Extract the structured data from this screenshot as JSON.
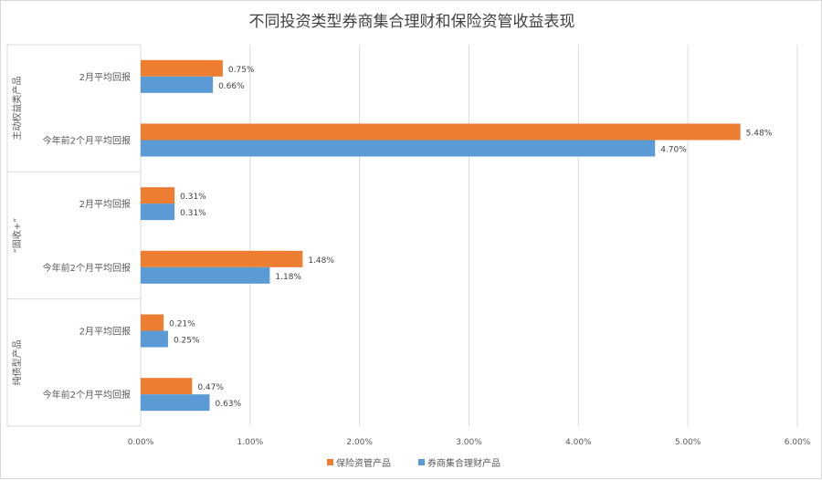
{
  "chart_data": {
    "type": "bar",
    "orientation": "horizontal",
    "title": "不同投资类型券商集合理财和保险资管收益表现",
    "groups": [
      {
        "name": "主动权益类产品",
        "categories": [
          "2月平均回报",
          "今年前2个月平均回报"
        ]
      },
      {
        "name": "“固收+”",
        "categories": [
          "2月平均回报",
          "今年前2个月平均回报"
        ]
      },
      {
        "name": "纯债型产品",
        "categories": [
          "2月平均回报",
          "今年前2个月平均回报"
        ]
      }
    ],
    "series": [
      {
        "name": "保险资管产品",
        "color": "#ed7d31",
        "values": [
          0.75,
          5.48,
          0.31,
          1.48,
          0.21,
          0.47
        ],
        "labels": [
          "0.75%",
          "5.48%",
          "0.31%",
          "1.48%",
          "0.21%",
          "0.47%"
        ]
      },
      {
        "name": "券商集合理财产品",
        "color": "#5b9bd5",
        "values": [
          0.66,
          4.7,
          0.31,
          1.18,
          0.25,
          0.63
        ],
        "labels": [
          "0.66%",
          "4.70%",
          "0.31%",
          "1.18%",
          "0.25%",
          "0.63%"
        ]
      }
    ],
    "xlim": [
      0,
      6
    ],
    "xticks": [
      "0.00%",
      "1.00%",
      "2.00%",
      "3.00%",
      "4.00%",
      "5.00%",
      "6.00%"
    ],
    "grid": true,
    "legend": "bottom"
  }
}
